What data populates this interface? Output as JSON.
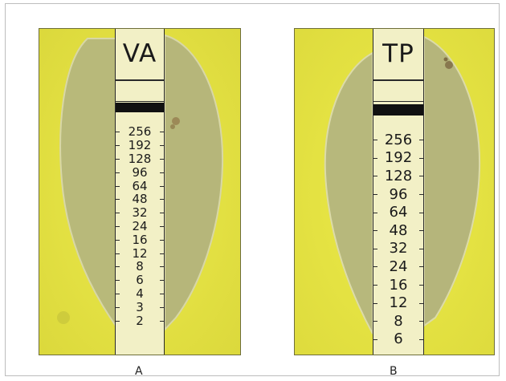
{
  "figure": {
    "panels": [
      {
        "id": "A",
        "strip_label": "VA",
        "caption": "A",
        "scale": [
          "256",
          "192",
          "128",
          "96",
          "64",
          "48",
          "32",
          "24",
          "16",
          "12",
          "8",
          "6",
          "4",
          "3",
          "2"
        ]
      },
      {
        "id": "B",
        "strip_label": "TP",
        "caption": "B",
        "scale": [
          "256",
          "192",
          "128",
          "96",
          "64",
          "48",
          "32",
          "24",
          "16",
          "12",
          "8",
          "6"
        ]
      }
    ]
  },
  "colors": {
    "medium_yellow": "#e7e53a",
    "inhibition_zone": "#b7b777",
    "strip": "#f2f0c6",
    "band": "#111111"
  }
}
